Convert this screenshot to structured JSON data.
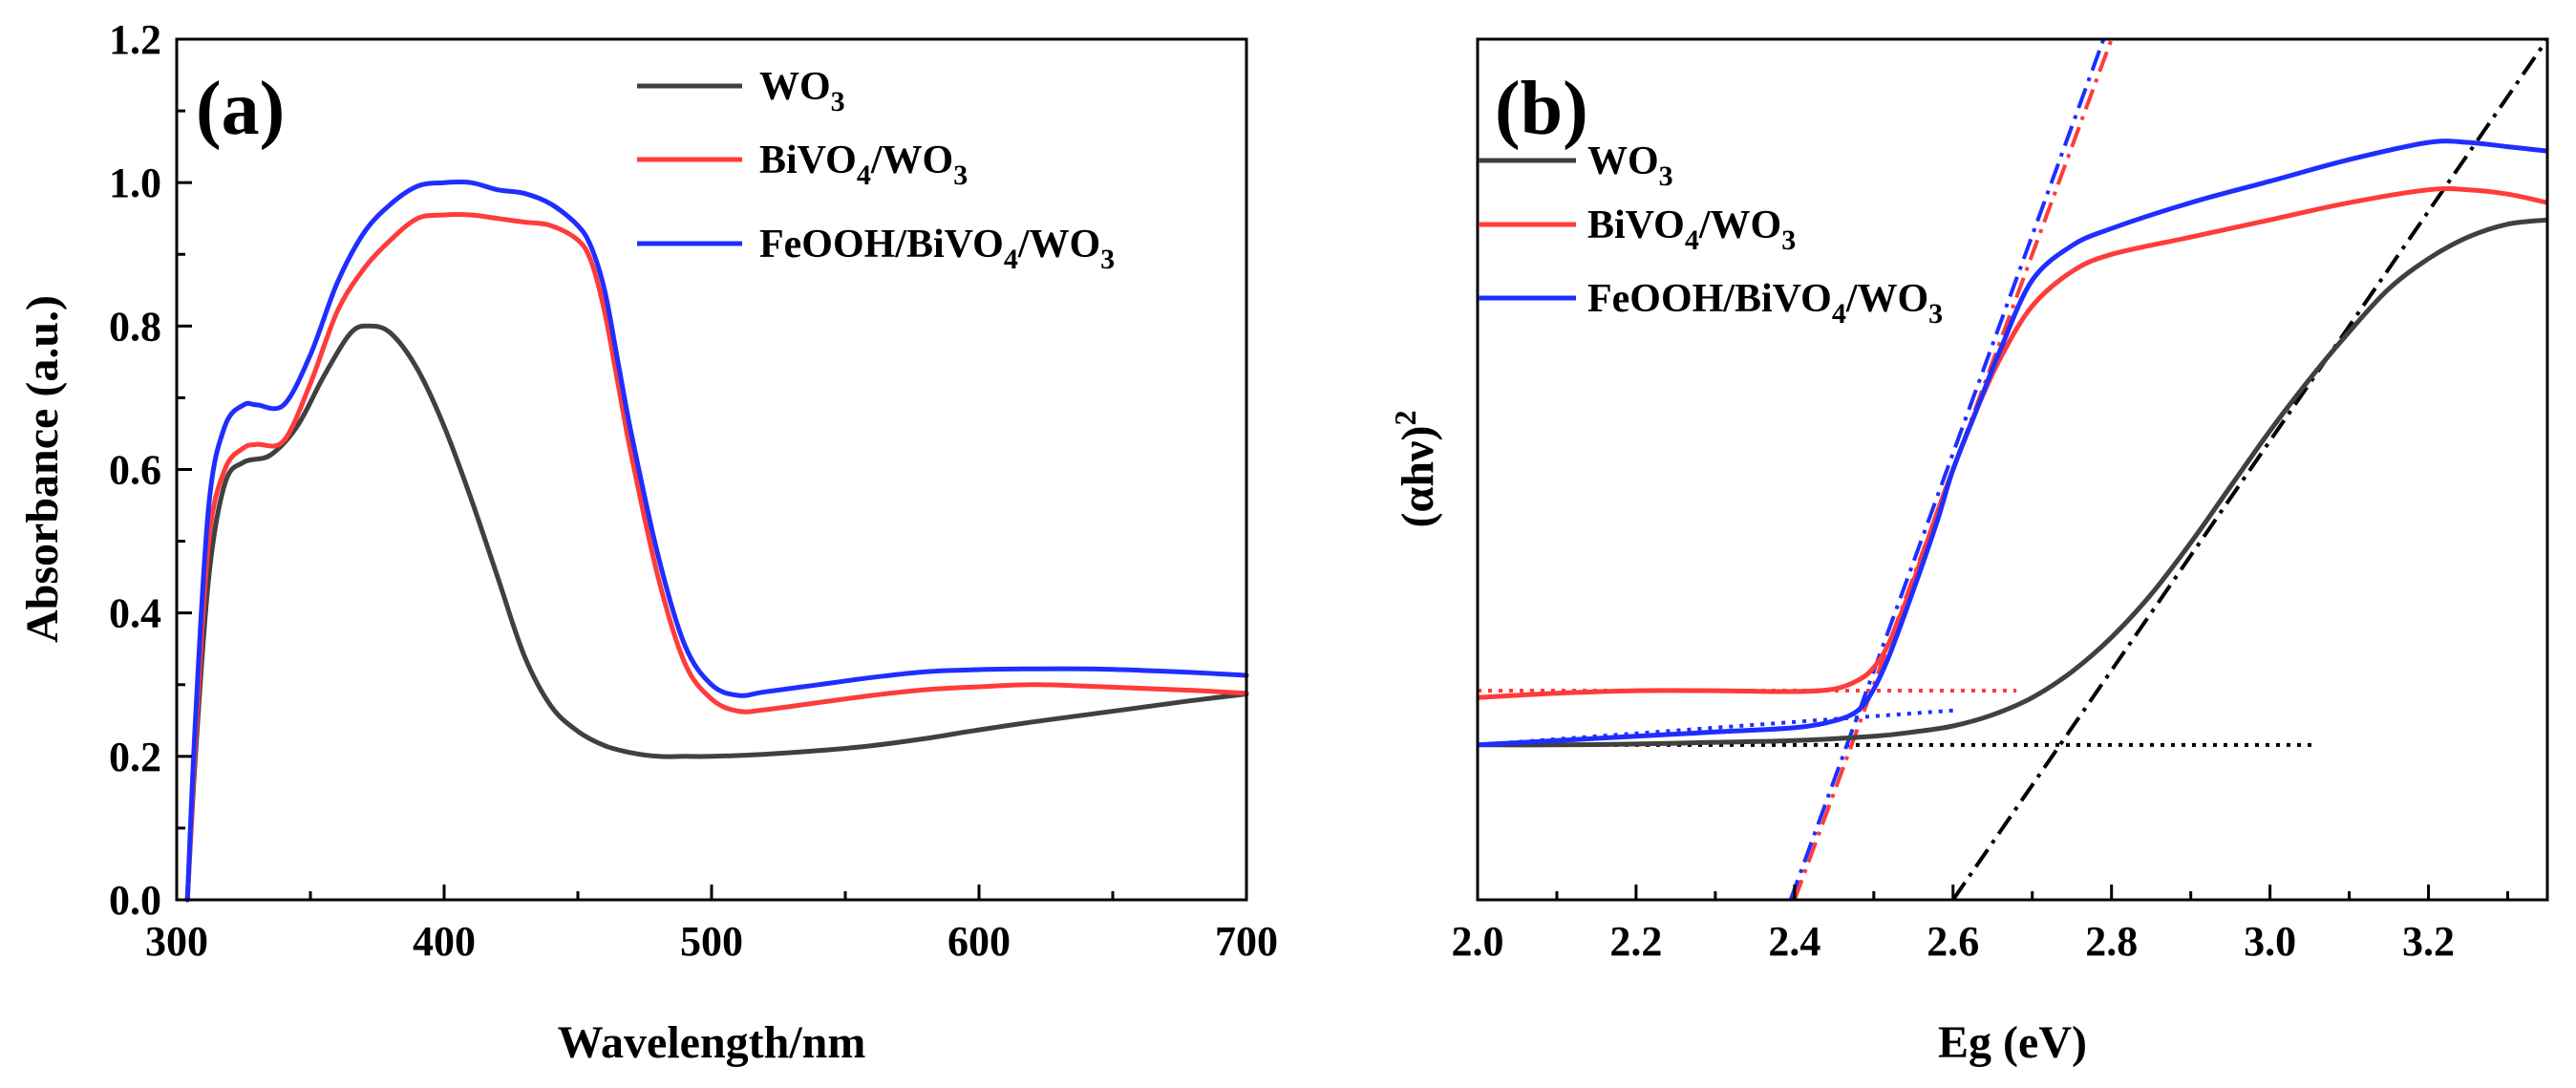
{
  "figure": {
    "panels": [
      "a",
      "b"
    ]
  },
  "chart_data": [
    {
      "id": "a",
      "type": "line",
      "panel_label": "(a)",
      "xlabel": "Wavelength/nm",
      "ylabel": "Absorbance (a.u.)",
      "xlim": [
        300,
        700
      ],
      "ylim": [
        0.0,
        1.2
      ],
      "xticks": [
        300,
        400,
        500,
        600,
        700
      ],
      "yticks": [
        0.0,
        0.2,
        0.4,
        0.6,
        0.8,
        1.0,
        1.2
      ],
      "ytick_labels": [
        "0.0",
        "0.2",
        "0.4",
        "0.6",
        "0.8",
        "1.0",
        "1.2"
      ],
      "legend_position": "top-right",
      "series": [
        {
          "name_base": "WO",
          "name_sub": "3",
          "color": "#404040",
          "x": [
            304,
            307,
            312,
            318,
            325,
            335,
            345,
            355,
            365,
            372,
            380,
            390,
            400,
            410,
            420,
            430,
            440,
            450,
            460,
            470,
            480,
            490,
            500,
            520,
            540,
            560,
            580,
            600,
            620,
            640,
            660,
            680,
            700
          ],
          "y": [
            0.0,
            0.2,
            0.45,
            0.58,
            0.61,
            0.62,
            0.66,
            0.73,
            0.79,
            0.8,
            0.79,
            0.74,
            0.66,
            0.56,
            0.45,
            0.34,
            0.27,
            0.235,
            0.215,
            0.205,
            0.2,
            0.2,
            0.2,
            0.203,
            0.208,
            0.215,
            0.225,
            0.237,
            0.248,
            0.258,
            0.268,
            0.278,
            0.287
          ]
        },
        {
          "name_base": "BiVO",
          "name_sub": "4",
          "name_rest": "/WO",
          "name_sub2": "3",
          "color": "#ff3b3b",
          "x": [
            304,
            307,
            312,
            318,
            325,
            330,
            340,
            350,
            360,
            370,
            380,
            390,
            400,
            410,
            420,
            430,
            440,
            450,
            455,
            460,
            465,
            470,
            480,
            490,
            500,
            510,
            520,
            540,
            560,
            580,
            600,
            620,
            640,
            660,
            680,
            700
          ],
          "y": [
            0.0,
            0.22,
            0.5,
            0.6,
            0.63,
            0.635,
            0.64,
            0.72,
            0.82,
            0.88,
            0.92,
            0.95,
            0.955,
            0.955,
            0.95,
            0.945,
            0.94,
            0.92,
            0.89,
            0.82,
            0.72,
            0.62,
            0.45,
            0.33,
            0.28,
            0.263,
            0.265,
            0.275,
            0.285,
            0.293,
            0.297,
            0.3,
            0.298,
            0.295,
            0.292,
            0.288
          ]
        },
        {
          "name_base": "FeOOH/BiVO",
          "name_sub": "4",
          "name_rest": "/WO",
          "name_sub2": "3",
          "color": "#1f2eff",
          "x": [
            304,
            307,
            312,
            318,
            325,
            330,
            340,
            350,
            360,
            370,
            380,
            390,
            400,
            410,
            420,
            430,
            440,
            450,
            455,
            460,
            465,
            470,
            480,
            490,
            500,
            510,
            520,
            540,
            560,
            580,
            600,
            620,
            640,
            660,
            680,
            700
          ],
          "y": [
            0.0,
            0.25,
            0.55,
            0.66,
            0.69,
            0.69,
            0.69,
            0.76,
            0.86,
            0.93,
            0.97,
            0.995,
            1.0,
            1.0,
            0.99,
            0.985,
            0.97,
            0.94,
            0.91,
            0.85,
            0.75,
            0.65,
            0.48,
            0.355,
            0.3,
            0.285,
            0.29,
            0.3,
            0.31,
            0.318,
            0.321,
            0.322,
            0.322,
            0.32,
            0.317,
            0.313
          ]
        }
      ]
    },
    {
      "id": "b",
      "type": "line",
      "panel_label": "(b)",
      "xlabel": "Eg (eV)",
      "ylabel_base": "(αhν)",
      "ylabel_sup": "2",
      "xlim": [
        2.0,
        3.35
      ],
      "ylim": [
        0.0,
        1.0
      ],
      "xticks": [
        2.0,
        2.2,
        2.4,
        2.6,
        2.8,
        3.0,
        3.2
      ],
      "xtick_labels": [
        "2.0",
        "2.2",
        "2.4",
        "2.6",
        "2.8",
        "3.0",
        "3.2"
      ],
      "legend_position": "top-left",
      "series": [
        {
          "name_base": "WO",
          "name_sub": "3",
          "color": "#404040",
          "x": [
            2.0,
            2.1,
            2.2,
            2.3,
            2.4,
            2.5,
            2.55,
            2.6,
            2.65,
            2.7,
            2.75,
            2.8,
            2.85,
            2.9,
            2.95,
            3.0,
            3.05,
            3.1,
            3.15,
            3.2,
            3.25,
            3.3,
            3.35
          ],
          "y": [
            0.18,
            0.18,
            0.181,
            0.183,
            0.185,
            0.19,
            0.195,
            0.202,
            0.215,
            0.235,
            0.265,
            0.305,
            0.355,
            0.415,
            0.48,
            0.545,
            0.605,
            0.66,
            0.71,
            0.745,
            0.77,
            0.785,
            0.79
          ]
        },
        {
          "name_base": "BiVO",
          "name_sub": "4",
          "name_rest": "/WO",
          "name_sub2": "3",
          "color": "#ff3b3b",
          "x": [
            2.0,
            2.1,
            2.2,
            2.3,
            2.4,
            2.45,
            2.48,
            2.5,
            2.52,
            2.55,
            2.58,
            2.6,
            2.63,
            2.66,
            2.7,
            2.75,
            2.8,
            2.9,
            3.0,
            3.1,
            3.2,
            3.25,
            3.3,
            3.35
          ],
          "y": [
            0.235,
            0.24,
            0.243,
            0.243,
            0.242,
            0.245,
            0.255,
            0.27,
            0.3,
            0.37,
            0.45,
            0.5,
            0.57,
            0.63,
            0.69,
            0.73,
            0.75,
            0.77,
            0.79,
            0.81,
            0.825,
            0.825,
            0.82,
            0.81
          ]
        },
        {
          "name_base": "FeOOH/BiVO",
          "name_sub": "4",
          "name_rest": "/WO",
          "name_sub2": "3",
          "color": "#1f2eff",
          "x": [
            2.0,
            2.1,
            2.2,
            2.3,
            2.4,
            2.45,
            2.48,
            2.5,
            2.52,
            2.55,
            2.58,
            2.6,
            2.63,
            2.66,
            2.7,
            2.75,
            2.8,
            2.9,
            3.0,
            3.1,
            3.2,
            3.25,
            3.3,
            3.35
          ],
          "y": [
            0.18,
            0.185,
            0.19,
            0.195,
            0.2,
            0.208,
            0.22,
            0.245,
            0.285,
            0.36,
            0.44,
            0.5,
            0.57,
            0.64,
            0.72,
            0.76,
            0.78,
            0.81,
            0.835,
            0.86,
            0.88,
            0.88,
            0.875,
            0.87
          ]
        }
      ],
      "baselines": [
        {
          "name": "WO3 baseline",
          "color": "#000000",
          "x": [
            2.0,
            3.06
          ],
          "y": [
            0.18,
            0.18
          ]
        },
        {
          "name": "BiVO4/WO3 baseline",
          "color": "#ff3b3b",
          "x": [
            2.0,
            2.68
          ],
          "y": [
            0.243,
            0.243
          ]
        },
        {
          "name": "FeOOH/BiVO4/WO3 baseline",
          "color": "#1f2eff",
          "x": [
            2.0,
            2.6
          ],
          "y": [
            0.18,
            0.22
          ]
        }
      ],
      "tangents": [
        {
          "name": "WO3 tangent",
          "color": "#000000",
          "x": [
            2.6,
            3.35
          ],
          "y": [
            0.0,
            1.0
          ]
        },
        {
          "name": "BiVO4/WO3 tangent",
          "color": "#ff3b3b",
          "x": [
            2.4,
            2.8
          ],
          "y": [
            0.0,
            1.0
          ]
        },
        {
          "name": "FeOOH/BiVO4/WO3 tangent",
          "color": "#1f2eff",
          "x": [
            2.395,
            2.79
          ],
          "y": [
            0.0,
            1.0
          ]
        }
      ]
    }
  ]
}
